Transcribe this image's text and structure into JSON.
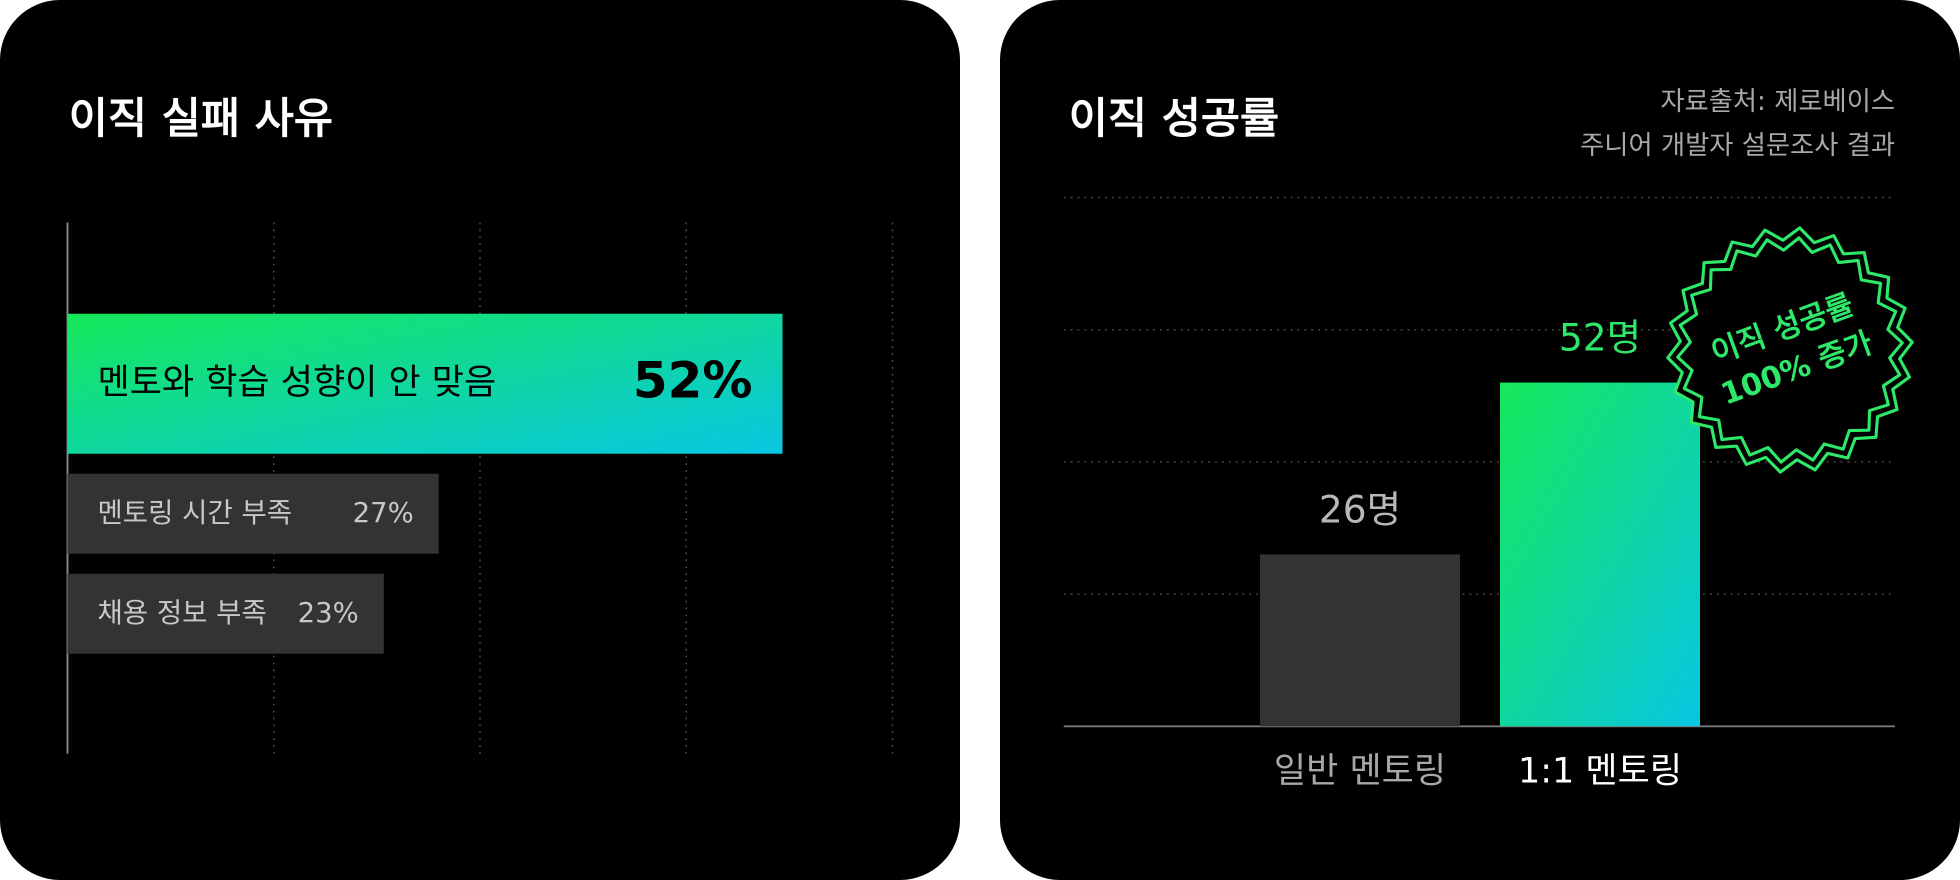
{
  "chart_data": [
    {
      "type": "hbar",
      "title": "이직 실패 사유",
      "categories": [
        "멘토와 학습 성향이 안 맞음",
        "멘토링 시간 부족",
        "채용 정보 부족"
      ],
      "values": [
        52,
        27,
        23
      ],
      "value_labels": [
        "52%",
        "27%",
        "23%"
      ],
      "colors": [
        "#16e85a",
        "#333336",
        "#333336"
      ],
      "xlim": [
        0,
        60
      ],
      "xticks": [
        15,
        30,
        45,
        60
      ],
      "grid": true
    },
    {
      "type": "bar",
      "title": "이직 성공률",
      "subtitle": [
        "자료출처: 제로베이스",
        "주니어 개발자 설문조사 결과"
      ],
      "categories": [
        "일반 멘토링",
        "1:1 멘토링"
      ],
      "values": [
        26,
        52
      ],
      "value_labels": [
        "26명",
        "52명"
      ],
      "colors": [
        "#333336",
        "#16e85a"
      ],
      "ylim": [
        0,
        80
      ],
      "yticks": [
        20,
        40,
        60,
        80
      ],
      "grid": true,
      "annotation": [
        "이직 성공률",
        "100% 증가"
      ]
    }
  ]
}
